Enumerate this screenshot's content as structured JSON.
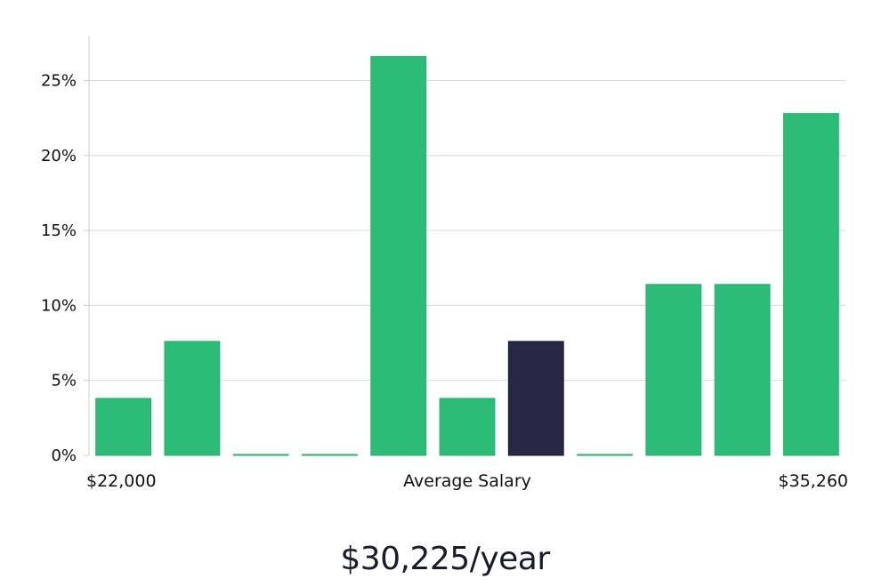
{
  "salary_label": "$30,225/year",
  "chart_data": {
    "type": "bar",
    "title": "",
    "xlabel": "Average Salary",
    "ylabel": "",
    "x_tick_labels": {
      "left": "$22,000",
      "center": "Average Salary",
      "right": "$35,260"
    },
    "categories": [
      "1",
      "2",
      "3",
      "4",
      "5",
      "6",
      "7",
      "8",
      "9",
      "10",
      "11"
    ],
    "values": [
      3.8,
      7.6,
      0,
      0,
      26.6,
      3.8,
      7.6,
      0,
      11.4,
      11.4,
      22.8
    ],
    "highlight_index": 6,
    "ylim": [
      0,
      28
    ],
    "yticks": [
      0,
      5,
      10,
      15,
      20,
      25
    ],
    "ytick_labels": [
      "0%",
      "5%",
      "10%",
      "15%",
      "20%",
      "25%"
    ],
    "grid": true,
    "colors": {
      "bar": "#2bbd77",
      "bar_edge": "#22b06a",
      "highlight": "#282846",
      "highlight_edge": "#14143a",
      "grid": "#d9d9d9",
      "axis": "#cfcfcf"
    }
  }
}
